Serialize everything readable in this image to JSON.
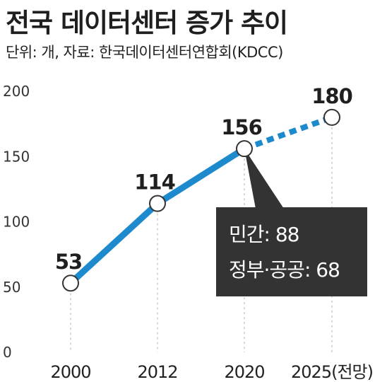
{
  "title": "전국 데이터센터 증가 추이",
  "subtitle": "단위: 개, 자료: 한국데이터센터연합회(KDCC)",
  "chart_data": {
    "type": "line",
    "categories": [
      "2000",
      "2012",
      "2020",
      "2025(전망)"
    ],
    "values": [
      53,
      114,
      156,
      180
    ],
    "projected_from_index": 2,
    "ylim": [
      0,
      200
    ],
    "yticks": [
      0,
      50,
      100,
      150,
      200
    ],
    "grid": "vertical dotted guides at data points",
    "line_color": "#1d8acd",
    "marker_fill": "#ffffff",
    "marker_stroke": "#333333",
    "annotation": {
      "attached_to_index": 2,
      "lines": [
        "민간: 88",
        "정부·공공: 68"
      ],
      "background": "#333333",
      "text_color": "#ffffff"
    }
  }
}
